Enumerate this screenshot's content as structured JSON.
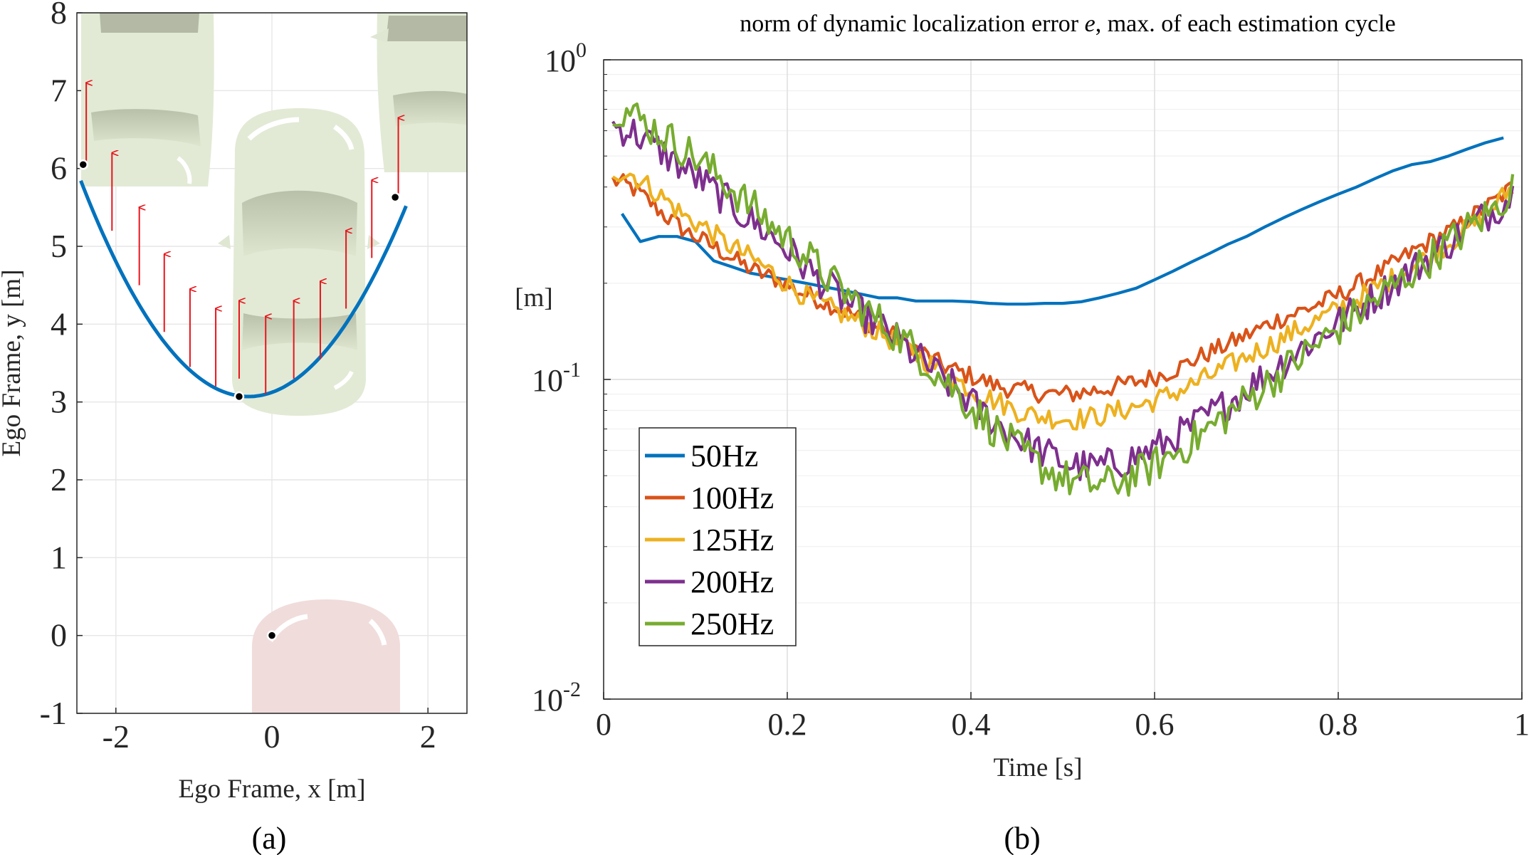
{
  "chart_data": [
    {
      "id": "a",
      "type": "line",
      "caption": "(a)",
      "xlabel": "Ego Frame, x   [m]",
      "ylabel": "Ego Frame, y   [m]",
      "xlim": [
        -2.5,
        2.5
      ],
      "ylim": [
        -1,
        8
      ],
      "xticks": [
        -2,
        0,
        2
      ],
      "yticks": [
        -1,
        0,
        1,
        2,
        3,
        4,
        5,
        6,
        7,
        8
      ],
      "grid": true,
      "path": {
        "name": "parabolic path",
        "color": "#0072BD",
        "x_range": [
          -2.45,
          1.72
        ],
        "vertex": [
          -0.3,
          3.07
        ],
        "coef": 0.6
      },
      "points": [
        {
          "x": -2.42,
          "y": 6.05
        },
        {
          "x": -0.42,
          "y": 3.07
        },
        {
          "x": 1.58,
          "y": 5.63
        },
        {
          "x": 0.0,
          "y": 0.0
        }
      ],
      "arrows": {
        "color": "#E8141B",
        "items": [
          {
            "x": -2.38,
            "y0": 6.05,
            "y1": 7.1
          },
          {
            "x": -2.05,
            "y0": 5.2,
            "y1": 6.2
          },
          {
            "x": -1.7,
            "y0": 4.5,
            "y1": 5.5
          },
          {
            "x": -1.38,
            "y0": 3.9,
            "y1": 4.9
          },
          {
            "x": -1.05,
            "y0": 3.45,
            "y1": 4.45
          },
          {
            "x": -0.72,
            "y0": 3.2,
            "y1": 4.2
          },
          {
            "x": -0.42,
            "y0": 3.3,
            "y1": 4.3
          },
          {
            "x": -0.08,
            "y0": 3.1,
            "y1": 4.1
          },
          {
            "x": 0.28,
            "y0": 3.3,
            "y1": 4.3
          },
          {
            "x": 0.62,
            "y0": 3.55,
            "y1": 4.55
          },
          {
            "x": 0.95,
            "y0": 4.2,
            "y1": 5.2
          },
          {
            "x": 1.28,
            "y0": 4.85,
            "y1": 5.85
          },
          {
            "x": 1.62,
            "y0": 5.65,
            "y1": 6.65
          }
        ]
      }
    },
    {
      "id": "b",
      "type": "line",
      "caption": "(b)",
      "title": "norm of dynamic localization error ",
      "title_var": "e",
      "title_rest": ", max. of each estimation cycle",
      "xlabel": "Time [s]",
      "ylabel": "[m]",
      "xscale": "linear",
      "yscale": "log",
      "xlim": [
        0,
        1
      ],
      "ylim": [
        0.01,
        1
      ],
      "xticks": [
        "0",
        "0.2",
        "0.4",
        "0.6",
        "0.8",
        "1"
      ],
      "yticks": [
        {
          "base": "10",
          "exp": "0"
        },
        {
          "base": "10",
          "exp": "-1"
        },
        {
          "base": "10",
          "exp": "-2"
        }
      ],
      "grid": true,
      "legend_position": "middle-left",
      "series": [
        {
          "name": "50Hz",
          "color": "#0072BD",
          "jitter": 0,
          "x": [
            0.02,
            0.04,
            0.06,
            0.08,
            0.1,
            0.12,
            0.14,
            0.16,
            0.18,
            0.2,
            0.22,
            0.24,
            0.26,
            0.28,
            0.3,
            0.32,
            0.34,
            0.36,
            0.38,
            0.4,
            0.42,
            0.44,
            0.46,
            0.48,
            0.5,
            0.52,
            0.54,
            0.56,
            0.58,
            0.6,
            0.62,
            0.64,
            0.66,
            0.68,
            0.7,
            0.72,
            0.74,
            0.76,
            0.78,
            0.8,
            0.82,
            0.84,
            0.86,
            0.88,
            0.9,
            0.92,
            0.94,
            0.96,
            0.98
          ],
          "y": [
            0.33,
            0.27,
            0.28,
            0.28,
            0.27,
            0.235,
            0.225,
            0.215,
            0.21,
            0.205,
            0.2,
            0.195,
            0.19,
            0.185,
            0.18,
            0.18,
            0.176,
            0.176,
            0.176,
            0.175,
            0.173,
            0.172,
            0.172,
            0.173,
            0.173,
            0.175,
            0.18,
            0.186,
            0.193,
            0.205,
            0.218,
            0.233,
            0.248,
            0.265,
            0.28,
            0.3,
            0.32,
            0.34,
            0.36,
            0.38,
            0.4,
            0.425,
            0.45,
            0.47,
            0.48,
            0.5,
            0.525,
            0.55,
            0.57
          ]
        },
        {
          "name": "100Hz",
          "color": "#D95319",
          "jitter": 0.06,
          "x": [
            0.01,
            0.03,
            0.05,
            0.07,
            0.09,
            0.11,
            0.13,
            0.15,
            0.17,
            0.19,
            0.21,
            0.23,
            0.25,
            0.27,
            0.29,
            0.31,
            0.33,
            0.35,
            0.37,
            0.39,
            0.41,
            0.43,
            0.45,
            0.47,
            0.49,
            0.51,
            0.53,
            0.55,
            0.57,
            0.59,
            0.61,
            0.63,
            0.65,
            0.67,
            0.69,
            0.71,
            0.73,
            0.75,
            0.77,
            0.79,
            0.81,
            0.83,
            0.85,
            0.87,
            0.89,
            0.91,
            0.93,
            0.95,
            0.97,
            0.99
          ],
          "y": [
            0.42,
            0.4,
            0.36,
            0.32,
            0.29,
            0.27,
            0.25,
            0.23,
            0.215,
            0.205,
            0.19,
            0.18,
            0.17,
            0.16,
            0.15,
            0.14,
            0.13,
            0.12,
            0.11,
            0.105,
            0.1,
            0.095,
            0.093,
            0.091,
            0.09,
            0.09,
            0.092,
            0.094,
            0.097,
            0.1,
            0.104,
            0.11,
            0.118,
            0.125,
            0.133,
            0.142,
            0.152,
            0.16,
            0.168,
            0.178,
            0.19,
            0.205,
            0.22,
            0.24,
            0.26,
            0.28,
            0.3,
            0.33,
            0.36,
            0.4
          ]
        },
        {
          "name": "125Hz",
          "color": "#EDB120",
          "jitter": 0.07,
          "x": [
            0.01,
            0.03,
            0.05,
            0.07,
            0.09,
            0.11,
            0.13,
            0.15,
            0.17,
            0.19,
            0.21,
            0.23,
            0.25,
            0.27,
            0.29,
            0.31,
            0.33,
            0.35,
            0.37,
            0.39,
            0.41,
            0.43,
            0.45,
            0.47,
            0.49,
            0.51,
            0.53,
            0.55,
            0.57,
            0.59,
            0.61,
            0.63,
            0.65,
            0.67,
            0.69,
            0.71,
            0.73,
            0.75,
            0.77,
            0.79,
            0.81,
            0.83,
            0.85,
            0.87,
            0.89,
            0.91,
            0.93,
            0.95,
            0.97,
            0.99
          ],
          "y": [
            0.45,
            0.44,
            0.4,
            0.36,
            0.32,
            0.3,
            0.27,
            0.25,
            0.23,
            0.21,
            0.19,
            0.175,
            0.165,
            0.155,
            0.145,
            0.135,
            0.125,
            0.115,
            0.105,
            0.097,
            0.09,
            0.085,
            0.08,
            0.077,
            0.076,
            0.075,
            0.076,
            0.078,
            0.081,
            0.084,
            0.088,
            0.093,
            0.099,
            0.106,
            0.114,
            0.122,
            0.13,
            0.14,
            0.15,
            0.16,
            0.172,
            0.185,
            0.2,
            0.215,
            0.235,
            0.255,
            0.28,
            0.31,
            0.35,
            0.4
          ]
        },
        {
          "name": "200Hz",
          "color": "#7E2F8E",
          "jitter": 0.11,
          "x": [
            0.01,
            0.03,
            0.05,
            0.07,
            0.09,
            0.11,
            0.13,
            0.15,
            0.17,
            0.19,
            0.21,
            0.23,
            0.25,
            0.27,
            0.29,
            0.31,
            0.33,
            0.35,
            0.37,
            0.39,
            0.41,
            0.43,
            0.45,
            0.47,
            0.49,
            0.51,
            0.53,
            0.55,
            0.57,
            0.59,
            0.61,
            0.63,
            0.65,
            0.67,
            0.69,
            0.71,
            0.73,
            0.75,
            0.77,
            0.79,
            0.81,
            0.83,
            0.85,
            0.87,
            0.89,
            0.91,
            0.93,
            0.95,
            0.97,
            0.99
          ],
          "y": [
            0.62,
            0.6,
            0.55,
            0.5,
            0.45,
            0.41,
            0.37,
            0.33,
            0.3,
            0.27,
            0.24,
            0.21,
            0.19,
            0.17,
            0.155,
            0.14,
            0.125,
            0.112,
            0.1,
            0.09,
            0.08,
            0.072,
            0.066,
            0.061,
            0.057,
            0.054,
            0.053,
            0.054,
            0.056,
            0.059,
            0.063,
            0.068,
            0.074,
            0.081,
            0.089,
            0.098,
            0.108,
            0.119,
            0.131,
            0.144,
            0.158,
            0.173,
            0.19,
            0.21,
            0.23,
            0.255,
            0.28,
            0.31,
            0.34,
            0.38
          ]
        },
        {
          "name": "250Hz",
          "color": "#77AC30",
          "jitter": 0.12,
          "x": [
            0.01,
            0.03,
            0.05,
            0.07,
            0.09,
            0.11,
            0.13,
            0.15,
            0.17,
            0.19,
            0.21,
            0.23,
            0.25,
            0.27,
            0.29,
            0.31,
            0.33,
            0.35,
            0.37,
            0.39,
            0.41,
            0.43,
            0.45,
            0.47,
            0.49,
            0.51,
            0.53,
            0.55,
            0.57,
            0.59,
            0.61,
            0.63,
            0.65,
            0.67,
            0.69,
            0.71,
            0.73,
            0.75,
            0.77,
            0.79,
            0.81,
            0.83,
            0.85,
            0.87,
            0.89,
            0.91,
            0.93,
            0.95,
            0.97,
            0.99
          ],
          "y": [
            0.72,
            0.68,
            0.62,
            0.57,
            0.52,
            0.47,
            0.42,
            0.37,
            0.33,
            0.29,
            0.26,
            0.23,
            0.2,
            0.18,
            0.16,
            0.145,
            0.13,
            0.115,
            0.1,
            0.088,
            0.077,
            0.068,
            0.061,
            0.055,
            0.051,
            0.048,
            0.047,
            0.047,
            0.049,
            0.052,
            0.056,
            0.061,
            0.067,
            0.074,
            0.082,
            0.091,
            0.101,
            0.112,
            0.124,
            0.137,
            0.152,
            0.168,
            0.186,
            0.205,
            0.228,
            0.252,
            0.28,
            0.31,
            0.34,
            0.4
          ]
        }
      ]
    }
  ]
}
